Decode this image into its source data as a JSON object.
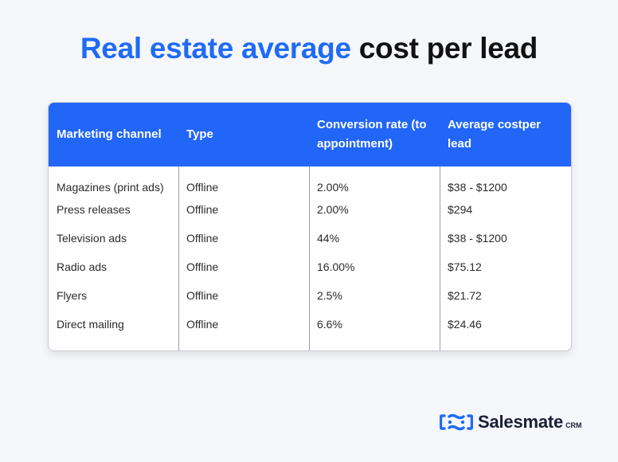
{
  "title": {
    "highlight": "Real estate average",
    "rest": "cost per lead"
  },
  "table": {
    "headers": [
      "Marketing channel",
      "Type",
      "Conversion rate (to appointment)",
      "Average costper lead"
    ],
    "rows": [
      [
        "Magazines (print ads)",
        "Offline",
        "2.00%",
        "$38 - $1200"
      ],
      [
        "Press releases",
        "Offline",
        "2.00%",
        "$294"
      ],
      [
        "Television ads",
        "Offline",
        "44%",
        "$38 - $1200"
      ],
      [
        "Radio ads",
        "Offline",
        "16.00%",
        "$75.12"
      ],
      [
        "Flyers",
        "Offline",
        "2.5%",
        "$21.72"
      ],
      [
        "Direct mailing",
        "Offline",
        "6.6%",
        "$24.46"
      ]
    ]
  },
  "brand": {
    "name": "Salesmate",
    "suffix": "CRM",
    "icon": "salesmate-logo-icon"
  },
  "colors": {
    "accent": "#1f6bf5",
    "header_bg": "#2166f6",
    "background": "#f6f7fb"
  }
}
